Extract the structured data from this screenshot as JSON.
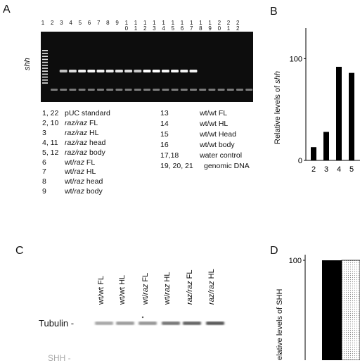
{
  "panels": {
    "A": "A",
    "B": "B",
    "C": "C",
    "D": "D"
  },
  "gel": {
    "gene_label": "shh",
    "lane_numbers": [
      "1",
      "2",
      "3",
      "4",
      "5",
      "6",
      "7",
      "8",
      "9",
      "1\n0",
      "1\n1",
      "1\n2",
      "1\n3",
      "1\n4",
      "1\n5",
      "1\n6",
      "1\n7",
      "1\n8",
      "1\n9",
      "2\n0",
      "2\n1",
      "2\n2"
    ],
    "band_intensity": [
      0,
      0.55,
      0.75,
      0.9,
      0.95,
      0.9,
      0.85,
      0.8,
      0.75,
      0.6,
      1,
      1,
      0.95,
      0.95,
      0.9,
      0.9,
      0,
      0,
      0,
      0,
      0,
      0
    ]
  },
  "legend_left": [
    {
      "num": "1, 22",
      "pre": "pUC standard",
      "it": "",
      "post": ""
    },
    {
      "num": "2, 10",
      "pre": "",
      "it": "raz/raz",
      "post": " FL"
    },
    {
      "num": "3",
      "pre": "",
      "it": "raz/raz",
      "post": " HL"
    },
    {
      "num": "4, 11",
      "pre": "",
      "it": "raz/raz",
      "post": " head"
    },
    {
      "num": "5, 12",
      "pre": "",
      "it": "raz/raz",
      "post": " body"
    },
    {
      "num": "6",
      "pre": "wt/",
      "it": "raz",
      "post": " FL"
    },
    {
      "num": "7",
      "pre": "wt/",
      "it": "raz",
      "post": " HL"
    },
    {
      "num": "8",
      "pre": "wt/",
      "it": "raz",
      "post": " head"
    },
    {
      "num": "9",
      "pre": "wt/",
      "it": "raz",
      "post": " body"
    }
  ],
  "legend_right": [
    {
      "num": "13",
      "text": "wt/wt FL"
    },
    {
      "num": "14",
      "text": "wt/wt HL"
    },
    {
      "num": "15",
      "text": "wt/wt Head"
    },
    {
      "num": "16",
      "text": "wt/wt body"
    },
    {
      "num": "17,18",
      "text": "water control"
    },
    {
      "num": "19, 20, 21",
      "text": "genomic DNA"
    }
  ],
  "chart_data": [
    {
      "type": "bar",
      "panel": "B",
      "title": "",
      "ylabel_pre": "Relative levels of ",
      "ylabel_it": "shh",
      "categories": [
        "2",
        "3",
        "4",
        "5"
      ],
      "values": [
        13,
        28,
        92,
        86
      ],
      "ylim": [
        0,
        130
      ],
      "yticks": [
        "0",
        "100"
      ]
    },
    {
      "type": "bar",
      "panel": "D",
      "title": "",
      "ylabel": "elative levels of SHH",
      "values": [
        100,
        100
      ],
      "ylim": [
        0,
        115
      ],
      "yticks": [
        "100"
      ]
    }
  ],
  "western": {
    "lane_labels": [
      {
        "pre": "wt/wt FL",
        "it": "",
        "post": ""
      },
      {
        "pre": "wt/wt HL",
        "it": "",
        "post": ""
      },
      {
        "pre": "wt/",
        "it": "raz",
        "post": " FL"
      },
      {
        "pre": "wt/",
        "it": "raz",
        "post": " HL"
      },
      {
        "pre": "",
        "it": "raz/raz",
        "post": " FL"
      },
      {
        "pre": "",
        "it": "raz/raz",
        "post": " HL"
      }
    ],
    "tubulin_label": "Tubulin -",
    "bottom_label": "SHH -"
  }
}
